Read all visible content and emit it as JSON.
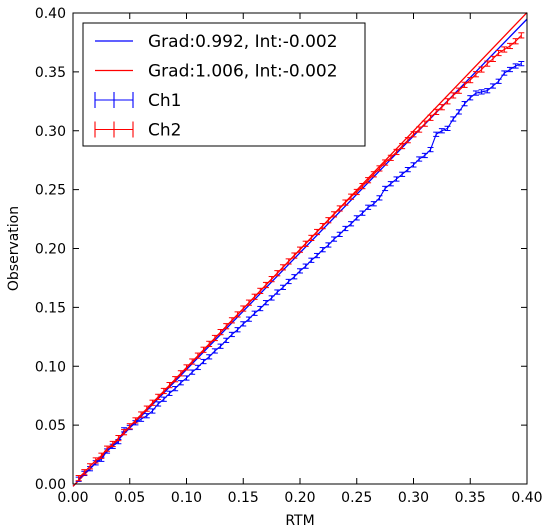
{
  "chart_data": {
    "type": "line",
    "title": "",
    "xlabel": "RTM",
    "ylabel": "Observation",
    "xlim": [
      0.0,
      0.4
    ],
    "ylim": [
      0.0,
      0.4
    ],
    "grid": false,
    "legend_placement": "top-left",
    "x_ticks": [
      "0.00",
      "0.05",
      "0.10",
      "0.15",
      "0.20",
      "0.25",
      "0.30",
      "0.35",
      "0.40"
    ],
    "y_ticks": [
      "0.00",
      "0.05",
      "0.10",
      "0.15",
      "0.20",
      "0.25",
      "0.30",
      "0.35",
      "0.40"
    ],
    "fit_lines": [
      {
        "label": "Grad:0.992, Int:-0.002",
        "color": "#0000ff",
        "gradient": 0.992,
        "intercept": -0.002
      },
      {
        "label": "Grad:1.006, Int:-0.002",
        "color": "#ff0000",
        "gradient": 1.006,
        "intercept": -0.002
      }
    ],
    "series": [
      {
        "name": "Ch1",
        "color": "#0000ff",
        "x": [
          0.005,
          0.01,
          0.015,
          0.02,
          0.025,
          0.03,
          0.035,
          0.04,
          0.045,
          0.05,
          0.055,
          0.06,
          0.065,
          0.07,
          0.075,
          0.08,
          0.085,
          0.09,
          0.095,
          0.1,
          0.105,
          0.11,
          0.115,
          0.12,
          0.125,
          0.13,
          0.135,
          0.14,
          0.145,
          0.15,
          0.155,
          0.16,
          0.165,
          0.17,
          0.175,
          0.18,
          0.185,
          0.19,
          0.195,
          0.2,
          0.205,
          0.21,
          0.215,
          0.22,
          0.225,
          0.23,
          0.235,
          0.24,
          0.245,
          0.25,
          0.255,
          0.26,
          0.265,
          0.27,
          0.275,
          0.28,
          0.285,
          0.29,
          0.295,
          0.3,
          0.305,
          0.31,
          0.315,
          0.32,
          0.325,
          0.33,
          0.335,
          0.34,
          0.345,
          0.35,
          0.355,
          0.36,
          0.365,
          0.37,
          0.375,
          0.38,
          0.385,
          0.39,
          0.395
        ],
        "y": [
          0.004,
          0.009,
          0.013,
          0.018,
          0.021,
          0.028,
          0.032,
          0.036,
          0.046,
          0.048,
          0.052,
          0.055,
          0.058,
          0.062,
          0.068,
          0.072,
          0.077,
          0.081,
          0.086,
          0.09,
          0.095,
          0.099,
          0.104,
          0.108,
          0.113,
          0.117,
          0.122,
          0.127,
          0.131,
          0.136,
          0.14,
          0.145,
          0.149,
          0.154,
          0.158,
          0.163,
          0.167,
          0.172,
          0.176,
          0.181,
          0.185,
          0.19,
          0.194,
          0.199,
          0.203,
          0.208,
          0.212,
          0.217,
          0.221,
          0.226,
          0.23,
          0.235,
          0.238,
          0.243,
          0.251,
          0.255,
          0.259,
          0.263,
          0.267,
          0.271,
          0.276,
          0.279,
          0.284,
          0.297,
          0.3,
          0.302,
          0.31,
          0.316,
          0.323,
          0.328,
          0.332,
          0.333,
          0.334,
          0.338,
          0.342,
          0.349,
          0.352,
          0.355,
          0.357
        ],
        "err": 0.0018
      },
      {
        "name": "Ch2",
        "color": "#ff0000",
        "x": [
          0.005,
          0.01,
          0.015,
          0.02,
          0.025,
          0.03,
          0.035,
          0.04,
          0.045,
          0.05,
          0.055,
          0.06,
          0.065,
          0.07,
          0.075,
          0.08,
          0.085,
          0.09,
          0.095,
          0.1,
          0.105,
          0.11,
          0.115,
          0.12,
          0.125,
          0.13,
          0.135,
          0.14,
          0.145,
          0.15,
          0.155,
          0.16,
          0.165,
          0.17,
          0.175,
          0.18,
          0.185,
          0.19,
          0.195,
          0.2,
          0.205,
          0.21,
          0.215,
          0.22,
          0.225,
          0.23,
          0.235,
          0.24,
          0.245,
          0.25,
          0.255,
          0.26,
          0.265,
          0.27,
          0.275,
          0.28,
          0.285,
          0.29,
          0.295,
          0.3,
          0.305,
          0.31,
          0.315,
          0.32,
          0.325,
          0.33,
          0.335,
          0.34,
          0.345,
          0.35,
          0.355,
          0.36,
          0.365,
          0.37,
          0.375,
          0.38,
          0.385,
          0.39,
          0.395
        ],
        "y": [
          0.005,
          0.01,
          0.015,
          0.02,
          0.024,
          0.03,
          0.034,
          0.039,
          0.044,
          0.049,
          0.054,
          0.059,
          0.064,
          0.069,
          0.074,
          0.079,
          0.084,
          0.089,
          0.094,
          0.099,
          0.104,
          0.109,
          0.114,
          0.119,
          0.124,
          0.129,
          0.134,
          0.139,
          0.144,
          0.149,
          0.154,
          0.159,
          0.164,
          0.169,
          0.174,
          0.179,
          0.184,
          0.189,
          0.194,
          0.199,
          0.204,
          0.209,
          0.214,
          0.219,
          0.224,
          0.229,
          0.234,
          0.239,
          0.244,
          0.248,
          0.253,
          0.258,
          0.263,
          0.268,
          0.273,
          0.277,
          0.282,
          0.287,
          0.292,
          0.297,
          0.301,
          0.306,
          0.311,
          0.316,
          0.32,
          0.325,
          0.33,
          0.334,
          0.339,
          0.343,
          0.348,
          0.352,
          0.357,
          0.361,
          0.366,
          0.369,
          0.372,
          0.376,
          0.381
        ],
        "err": 0.0022
      }
    ]
  }
}
